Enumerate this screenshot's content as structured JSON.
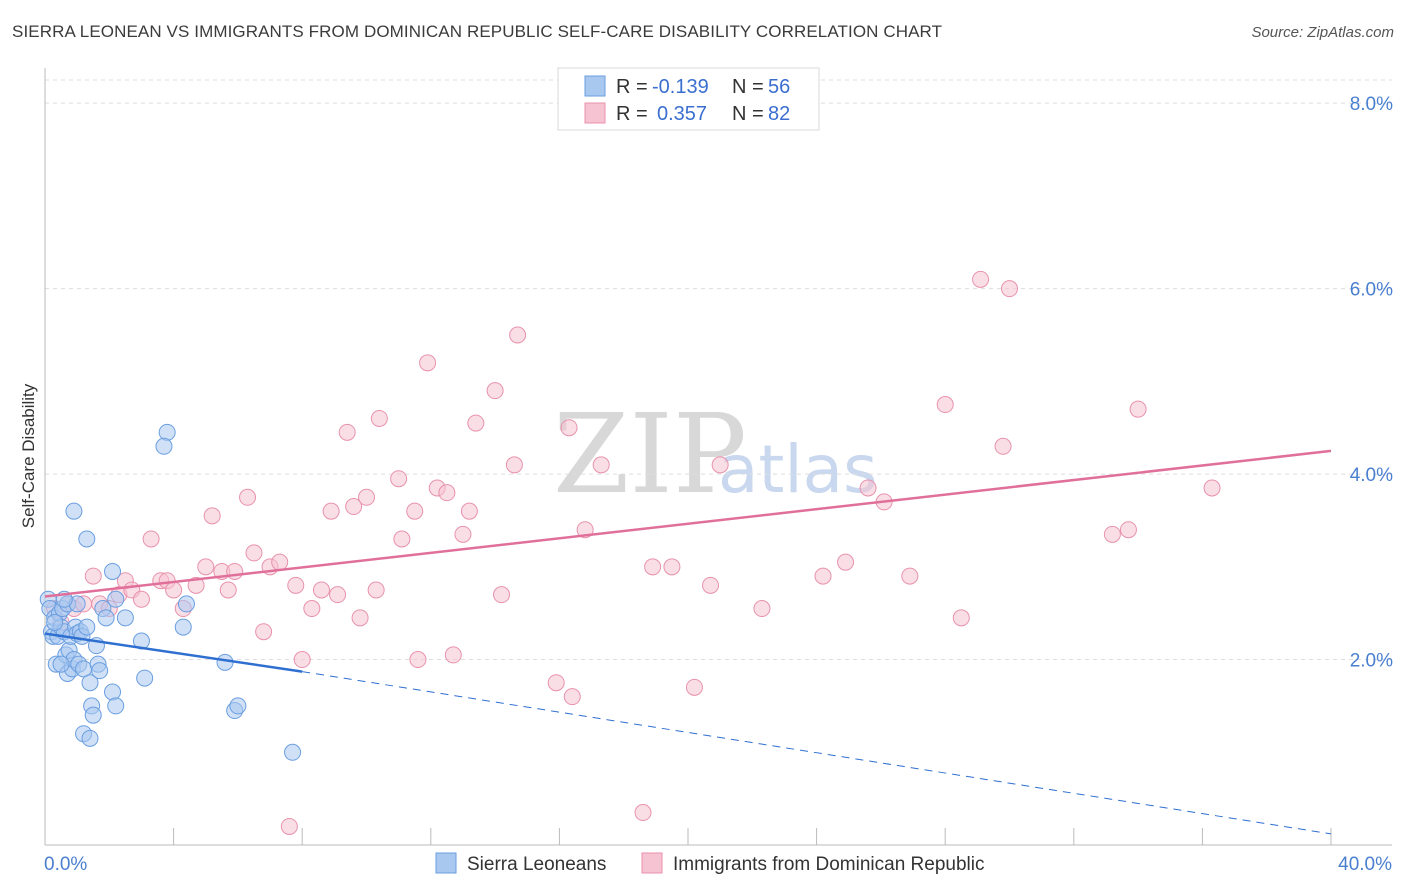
{
  "title": "SIERRA LEONEAN VS IMMIGRANTS FROM DOMINICAN REPUBLIC SELF-CARE DISABILITY CORRELATION CHART",
  "source": "Source: ZipAtlas.com",
  "watermark": {
    "part1": "ZIP",
    "part2": "atlas"
  },
  "legend": {
    "rows": [
      {
        "r_label": "R = ",
        "r_value": "-0.139",
        "n_label": "N = ",
        "n_value": "56"
      },
      {
        "r_label": "R = ",
        "r_value": "0.357",
        "n_label": "N = ",
        "n_value": "82"
      }
    ]
  },
  "bottom_legend": [
    "Sierra Leoneans",
    "Immigrants from Dominican Republic"
  ],
  "colors": {
    "blue_fill": "#a9c8f0",
    "blue_stroke": "#6a9ee0",
    "blue_line": "#2f6fd0",
    "pink_fill": "#f6c3d2",
    "pink_stroke": "#e892ad",
    "pink_line": "#e0709a",
    "axis_text": "#4a7fd0",
    "grid": "#dddddd"
  },
  "chart_data": {
    "type": "scatter",
    "title": "SIERRA LEONEAN VS IMMIGRANTS FROM DOMINICAN REPUBLIC SELF-CARE DISABILITY CORRELATION CHART",
    "xlabel": "",
    "ylabel": "Self-Care Disability",
    "xlim": [
      0,
      40
    ],
    "ylim": [
      0,
      8.25
    ],
    "x_tick_labels": [
      "0.0%",
      "40.0%"
    ],
    "y_ticks": [
      2,
      4,
      6,
      8
    ],
    "y_tick_labels": [
      "2.0%",
      "4.0%",
      "6.0%",
      "8.0%"
    ],
    "series": [
      {
        "name": "Sierra Leoneans",
        "R": -0.139,
        "N": 56,
        "trend": {
          "x0": 0,
          "y0": 2.28,
          "x1": 8.0,
          "y1": 1.87,
          "dash_x1": 40.0,
          "dash_y1": 0.12
        },
        "points": [
          [
            0.1,
            2.65
          ],
          [
            0.15,
            2.55
          ],
          [
            0.2,
            2.3
          ],
          [
            0.25,
            2.25
          ],
          [
            0.3,
            2.45
          ],
          [
            0.35,
            1.95
          ],
          [
            0.4,
            2.25
          ],
          [
            0.45,
            2.5
          ],
          [
            0.5,
            2.35
          ],
          [
            0.55,
            2.55
          ],
          [
            0.6,
            2.3
          ],
          [
            0.65,
            2.05
          ],
          [
            0.7,
            1.85
          ],
          [
            0.75,
            2.1
          ],
          [
            0.8,
            2.25
          ],
          [
            0.85,
            1.9
          ],
          [
            0.9,
            2.0
          ],
          [
            0.95,
            2.35
          ],
          [
            1.0,
            2.28
          ],
          [
            1.05,
            1.95
          ],
          [
            1.1,
            2.3
          ],
          [
            1.15,
            2.25
          ],
          [
            1.2,
            1.9
          ],
          [
            1.3,
            2.35
          ],
          [
            1.4,
            1.75
          ],
          [
            1.45,
            1.5
          ],
          [
            1.5,
            1.4
          ],
          [
            1.6,
            2.15
          ],
          [
            1.65,
            1.95
          ],
          [
            1.7,
            1.88
          ],
          [
            1.8,
            2.55
          ],
          [
            1.9,
            2.45
          ],
          [
            2.1,
            1.65
          ],
          [
            2.2,
            1.5
          ],
          [
            2.5,
            2.45
          ],
          [
            0.9,
            3.6
          ],
          [
            1.3,
            3.3
          ],
          [
            2.1,
            2.95
          ],
          [
            3.0,
            2.2
          ],
          [
            3.1,
            1.8
          ],
          [
            3.8,
            4.45
          ],
          [
            3.7,
            4.3
          ],
          [
            4.3,
            2.35
          ],
          [
            4.4,
            2.6
          ],
          [
            5.6,
            1.97
          ],
          [
            5.9,
            1.45
          ],
          [
            6.0,
            1.5
          ],
          [
            7.7,
            1.0
          ],
          [
            1.2,
            1.2
          ],
          [
            1.4,
            1.15
          ],
          [
            0.5,
            1.95
          ],
          [
            0.7,
            2.6
          ],
          [
            1.0,
            2.6
          ],
          [
            2.2,
            2.65
          ],
          [
            0.3,
            2.4
          ],
          [
            0.6,
            2.65
          ]
        ]
      },
      {
        "name": "Immigrants from Dominican Republic",
        "R": 0.357,
        "N": 82,
        "trend": {
          "x0": 0,
          "y0": 2.68,
          "x1": 40.0,
          "y1": 4.25
        },
        "points": [
          [
            0.3,
            2.55
          ],
          [
            0.5,
            2.4
          ],
          [
            0.7,
            2.6
          ],
          [
            0.9,
            2.55
          ],
          [
            1.2,
            2.6
          ],
          [
            1.5,
            2.9
          ],
          [
            1.7,
            2.6
          ],
          [
            2.0,
            2.55
          ],
          [
            2.3,
            2.7
          ],
          [
            2.5,
            2.85
          ],
          [
            2.7,
            2.75
          ],
          [
            3.0,
            2.65
          ],
          [
            3.3,
            3.3
          ],
          [
            3.6,
            2.85
          ],
          [
            3.8,
            2.85
          ],
          [
            4.0,
            2.75
          ],
          [
            4.3,
            2.55
          ],
          [
            4.7,
            2.8
          ],
          [
            5.0,
            3.0
          ],
          [
            5.2,
            3.55
          ],
          [
            5.5,
            2.95
          ],
          [
            5.7,
            2.75
          ],
          [
            5.9,
            2.95
          ],
          [
            6.3,
            3.75
          ],
          [
            6.5,
            3.15
          ],
          [
            6.8,
            2.3
          ],
          [
            7.0,
            3.0
          ],
          [
            7.3,
            3.05
          ],
          [
            7.6,
            0.2
          ],
          [
            7.8,
            2.8
          ],
          [
            8.0,
            2.0
          ],
          [
            8.3,
            2.55
          ],
          [
            8.6,
            2.75
          ],
          [
            8.9,
            3.6
          ],
          [
            9.1,
            2.7
          ],
          [
            9.4,
            4.45
          ],
          [
            9.6,
            3.65
          ],
          [
            9.8,
            2.45
          ],
          [
            10.0,
            3.75
          ],
          [
            10.3,
            2.75
          ],
          [
            10.4,
            4.6
          ],
          [
            11.0,
            3.95
          ],
          [
            11.1,
            3.3
          ],
          [
            11.5,
            3.6
          ],
          [
            11.6,
            2.0
          ],
          [
            11.9,
            5.2
          ],
          [
            12.2,
            3.85
          ],
          [
            12.5,
            3.8
          ],
          [
            12.7,
            2.05
          ],
          [
            13.0,
            3.35
          ],
          [
            13.2,
            3.6
          ],
          [
            13.4,
            4.55
          ],
          [
            14.0,
            4.9
          ],
          [
            14.2,
            2.7
          ],
          [
            14.6,
            4.1
          ],
          [
            14.7,
            5.5
          ],
          [
            15.9,
            1.75
          ],
          [
            16.3,
            4.5
          ],
          [
            16.4,
            1.6
          ],
          [
            16.8,
            3.4
          ],
          [
            17.3,
            4.1
          ],
          [
            18.6,
            0.35
          ],
          [
            18.9,
            3.0
          ],
          [
            19.5,
            3.0
          ],
          [
            20.2,
            1.7
          ],
          [
            20.7,
            2.8
          ],
          [
            21.0,
            4.1
          ],
          [
            22.3,
            2.55
          ],
          [
            24.2,
            2.9
          ],
          [
            24.9,
            3.05
          ],
          [
            25.6,
            3.85
          ],
          [
            26.1,
            3.7
          ],
          [
            26.9,
            2.9
          ],
          [
            28.0,
            4.75
          ],
          [
            28.5,
            2.45
          ],
          [
            29.1,
            6.1
          ],
          [
            30.0,
            6.0
          ],
          [
            29.8,
            4.3
          ],
          [
            33.2,
            3.35
          ],
          [
            33.7,
            3.4
          ],
          [
            34.0,
            4.7
          ],
          [
            36.3,
            3.85
          ]
        ]
      }
    ]
  }
}
